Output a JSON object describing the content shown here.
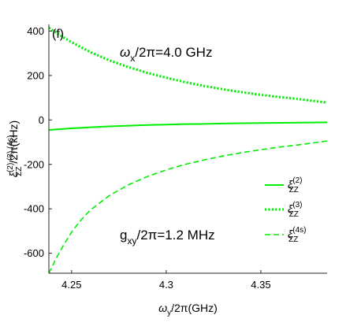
{
  "chart_data": {
    "type": "line",
    "panel_label": "(f)",
    "annotations": [
      {
        "id": "wx",
        "sym": "ω",
        "sub": "x",
        "rest": "/2π=4.0 GHz",
        "italic_sym": true
      },
      {
        "id": "gxy",
        "sym": "g",
        "sub": "xy",
        "rest": "/2π=1.2 MHz",
        "italic_sym": false
      }
    ],
    "xlabel": {
      "sym": "ω",
      "sub": "y",
      "rest": "/2π(GHz)"
    },
    "ylabel": {
      "sym": "ξ",
      "sub": "ZZ",
      "sup": "(2),(3),(4s)",
      "rest": "/2π(kHz)"
    },
    "xlim": [
      4.238,
      4.385
    ],
    "ylim": [
      -690,
      430
    ],
    "xticks": [
      4.25,
      4.3,
      4.35
    ],
    "xtick_labels": [
      "4.25",
      "4.3",
      "4.35"
    ],
    "yticks": [
      -600,
      -400,
      -200,
      0,
      200,
      400
    ],
    "ytick_labels": [
      "-600",
      "-400",
      "-200",
      "0",
      "200",
      "400"
    ],
    "line_color": "#00ee00",
    "series": [
      {
        "key": "s2",
        "name_sym": "ξ",
        "name_sub": "ZZ",
        "name_sup": "(2)",
        "style": "solid",
        "x": [
          4.238,
          4.25,
          4.26,
          4.27,
          4.28,
          4.29,
          4.3,
          4.31,
          4.32,
          4.33,
          4.34,
          4.35,
          4.36,
          4.37,
          4.385
        ],
        "y": [
          -45,
          -38,
          -33,
          -29,
          -26,
          -23,
          -21,
          -19,
          -18,
          -16,
          -15,
          -14,
          -13,
          -12,
          -11
        ]
      },
      {
        "key": "s3",
        "name_sym": "ξ",
        "name_sub": "ZZ",
        "name_sup": "(3)",
        "style": "dotted",
        "x": [
          4.238,
          4.245,
          4.25,
          4.26,
          4.27,
          4.28,
          4.29,
          4.3,
          4.31,
          4.32,
          4.33,
          4.34,
          4.35,
          4.36,
          4.37,
          4.385
        ],
        "y": [
          415,
          375,
          350,
          305,
          268,
          238,
          212,
          190,
          170,
          153,
          138,
          125,
          113,
          103,
          94,
          78
        ]
      },
      {
        "key": "s4",
        "name_sym": "ξ",
        "name_sub": "ZZ",
        "name_sup": "(4s)",
        "style": "dashed",
        "x": [
          4.238,
          4.242,
          4.246,
          4.25,
          4.255,
          4.26,
          4.27,
          4.28,
          4.29,
          4.3,
          4.31,
          4.32,
          4.33,
          4.34,
          4.35,
          4.36,
          4.37,
          4.385
        ],
        "y": [
          -690,
          -620,
          -560,
          -505,
          -450,
          -405,
          -340,
          -292,
          -255,
          -225,
          -200,
          -180,
          -162,
          -147,
          -134,
          -122,
          -112,
          -95
        ]
      }
    ]
  }
}
